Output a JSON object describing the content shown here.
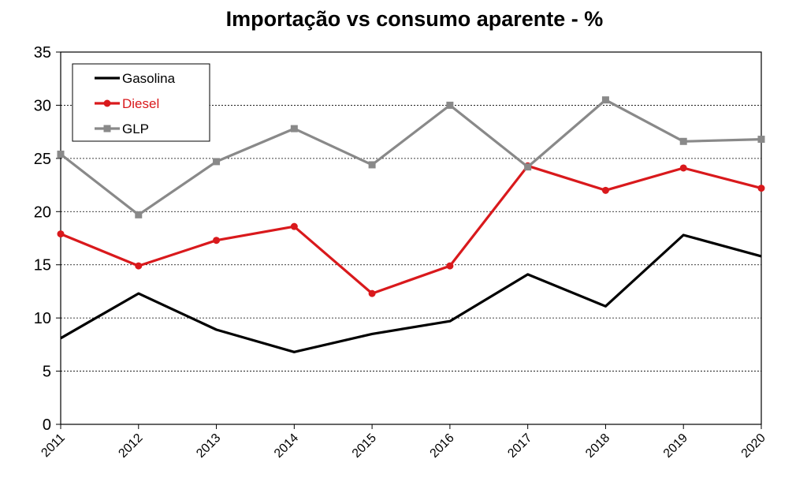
{
  "chart_data": {
    "type": "line",
    "title": "Importação vs consumo aparente - %",
    "xlabel": "",
    "ylabel": "",
    "x": [
      "2011",
      "2012",
      "2013",
      "2014",
      "2015",
      "2016",
      "2017",
      "2018",
      "2019",
      "2020"
    ],
    "ylim": [
      0,
      35
    ],
    "yticks": [
      "0",
      "5",
      "10",
      "15",
      "20",
      "25",
      "30",
      "35"
    ],
    "grid": "horizontal dashed",
    "legend_position": "top-left",
    "series": [
      {
        "name": "Gasolina",
        "color": "#000000",
        "marker": "none",
        "values": [
          8.1,
          12.3,
          8.9,
          6.8,
          8.5,
          9.7,
          14.1,
          11.1,
          17.8,
          15.8
        ]
      },
      {
        "name": "Diesel",
        "color": "#d9191c",
        "marker": "circle",
        "values": [
          17.9,
          14.9,
          17.3,
          18.6,
          12.3,
          14.9,
          24.3,
          22.0,
          24.1,
          22.2
        ]
      },
      {
        "name": "GLP",
        "color": "#898989",
        "marker": "square",
        "values": [
          25.4,
          19.7,
          24.7,
          27.8,
          24.4,
          30.0,
          24.2,
          30.5,
          26.6,
          26.8
        ]
      }
    ]
  }
}
